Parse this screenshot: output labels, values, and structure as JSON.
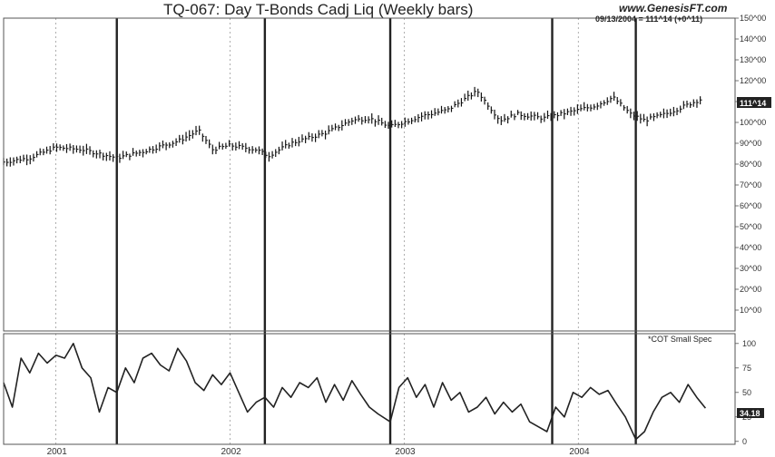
{
  "header": {
    "title": "TQ-067:  Day T-Bonds Cadj Liq  (Weekly bars)",
    "site": "www.GenesisFT.com",
    "readout": "09/13/2004 = 111^14 (+0^11)"
  },
  "colors": {
    "frame": "#555555",
    "grid": "#9a9a9a",
    "bars": "#111111",
    "marker": "#222222",
    "tag_bg": "#222222"
  },
  "chart_data": [
    {
      "type": "line",
      "subtype": "weekly price bars",
      "title": "TQ-067:  Day T-Bonds Cadj Liq  (Weekly bars)",
      "ylim": [
        0,
        150
      ],
      "y_ticks": [
        "10^00",
        "20^00",
        "30^00",
        "40^00",
        "50^00",
        "60^00",
        "70^00",
        "80^00",
        "90^00",
        "100^00",
        "110^00",
        "120^00",
        "130^00",
        "140^00",
        "150^00"
      ],
      "y_tick_values": [
        10,
        20,
        30,
        40,
        50,
        60,
        70,
        80,
        90,
        100,
        110,
        120,
        130,
        140,
        150
      ],
      "last_value_label": "111^14",
      "x_labels": [
        "2001",
        "2002",
        "2003",
        "2004"
      ],
      "x_label_positions": [
        2001.0,
        2002.0,
        2003.0,
        2004.0
      ],
      "xlim": [
        2000.7,
        2004.9
      ],
      "dashed_grid_x": [
        2001.0,
        2002.0,
        2003.0,
        2004.0
      ],
      "vertical_markers": [
        2001.35,
        2002.2,
        2002.92,
        2003.85,
        2004.33
      ],
      "anchors_x": [
        2000.7,
        2000.85,
        2001.0,
        2001.15,
        2001.35,
        2001.5,
        2001.7,
        2001.82,
        2001.9,
        2002.0,
        2002.15,
        2002.22,
        2002.35,
        2002.55,
        2002.7,
        2002.8,
        2002.92,
        2003.1,
        2003.25,
        2003.42,
        2003.55,
        2003.65,
        2003.8,
        2003.95,
        2004.1,
        2004.2,
        2004.3,
        2004.38,
        2004.5,
        2004.7
      ],
      "anchors_y": [
        81,
        83,
        88,
        87,
        83,
        86,
        91,
        96,
        87,
        89,
        87,
        84,
        90,
        95,
        101,
        102,
        98,
        103,
        106,
        115,
        101,
        104,
        102,
        105,
        108,
        112,
        104,
        101,
        104,
        111
      ]
    },
    {
      "type": "line",
      "title": "*COT Small Spec",
      "ylim": [
        -3,
        110
      ],
      "y_ticks": [
        "0",
        "25",
        "50",
        "75",
        "100"
      ],
      "y_tick_values": [
        0,
        25,
        50,
        75,
        100
      ],
      "last_value_label": "34.18",
      "xlim": [
        2000.7,
        2004.9
      ],
      "x": [
        2000.7,
        2000.75,
        2000.8,
        2000.85,
        2000.9,
        2000.95,
        2001.0,
        2001.05,
        2001.1,
        2001.15,
        2001.2,
        2001.25,
        2001.3,
        2001.35,
        2001.4,
        2001.45,
        2001.5,
        2001.55,
        2001.6,
        2001.65,
        2001.7,
        2001.75,
        2001.8,
        2001.85,
        2001.9,
        2001.95,
        2002.0,
        2002.05,
        2002.1,
        2002.15,
        2002.2,
        2002.25,
        2002.3,
        2002.35,
        2002.4,
        2002.45,
        2002.5,
        2002.55,
        2002.6,
        2002.65,
        2002.7,
        2002.75,
        2002.8,
        2002.85,
        2002.92,
        2002.97,
        2003.02,
        2003.07,
        2003.12,
        2003.17,
        2003.22,
        2003.27,
        2003.32,
        2003.37,
        2003.42,
        2003.47,
        2003.52,
        2003.57,
        2003.62,
        2003.67,
        2003.72,
        2003.77,
        2003.82,
        2003.87,
        2003.92,
        2003.97,
        2004.02,
        2004.07,
        2004.12,
        2004.17,
        2004.22,
        2004.27,
        2004.33,
        2004.38,
        2004.43,
        2004.48,
        2004.53,
        2004.58,
        2004.63,
        2004.68,
        2004.73
      ],
      "values": [
        60,
        35,
        85,
        70,
        90,
        80,
        88,
        85,
        100,
        75,
        65,
        30,
        55,
        50,
        75,
        60,
        85,
        90,
        78,
        72,
        95,
        82,
        60,
        52,
        68,
        58,
        70,
        50,
        30,
        40,
        45,
        35,
        55,
        45,
        60,
        55,
        65,
        40,
        58,
        42,
        62,
        48,
        35,
        28,
        20,
        55,
        65,
        45,
        58,
        35,
        60,
        42,
        50,
        30,
        35,
        45,
        28,
        40,
        30,
        38,
        20,
        15,
        10,
        35,
        25,
        50,
        45,
        55,
        48,
        52,
        38,
        25,
        2,
        10,
        30,
        45,
        50,
        40,
        58,
        45,
        34
      ]
    }
  ]
}
